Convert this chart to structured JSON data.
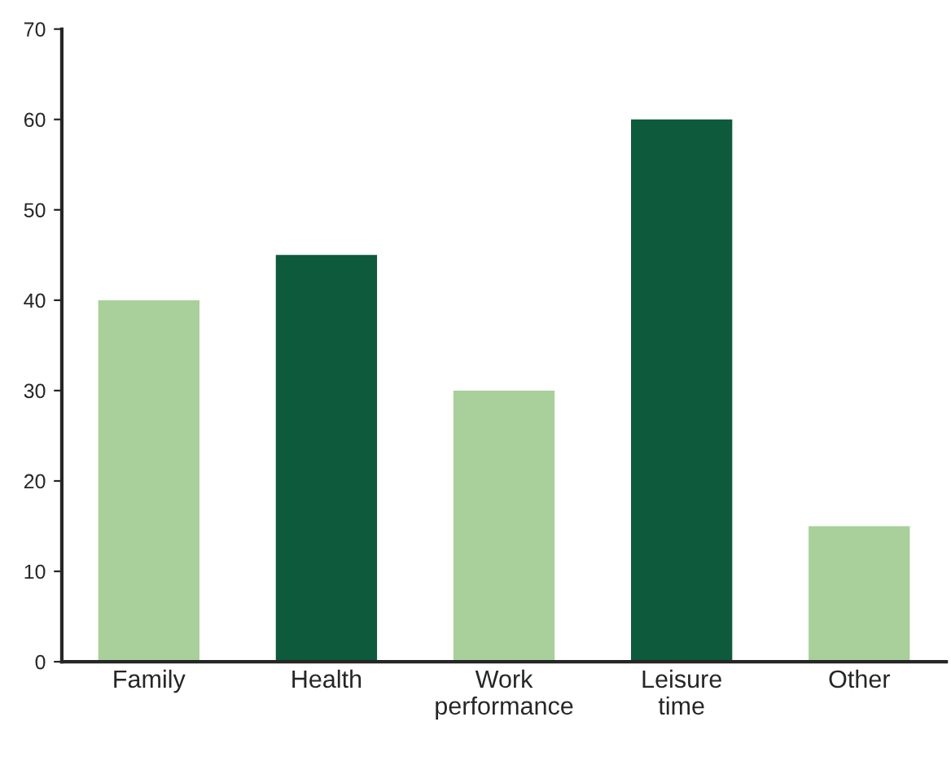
{
  "chart_data": {
    "type": "bar",
    "categories": [
      "Family",
      "Health",
      "Work\nperformance",
      "Leisure\ntime",
      "Other"
    ],
    "values": [
      40,
      45,
      30,
      60,
      15
    ],
    "colors": [
      "#a9d09b",
      "#0d5a3c",
      "#a9d09b",
      "#0d5a3c",
      "#a9d09b"
    ],
    "ylim": [
      0,
      70
    ],
    "yticks": [
      0,
      10,
      20,
      30,
      40,
      50,
      60,
      70
    ],
    "grid": false,
    "legend": false
  }
}
